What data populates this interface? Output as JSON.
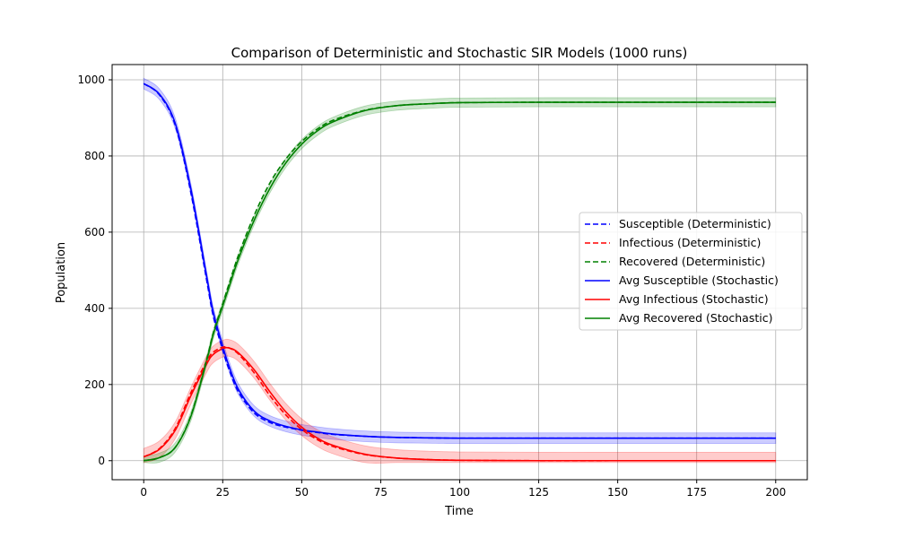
{
  "chart_data": {
    "type": "line",
    "title": "Comparison of Deterministic and Stochastic SIR Models (1000 runs)",
    "xlabel": "Time",
    "ylabel": "Population",
    "xlim": [
      -10,
      210
    ],
    "ylim": [
      -50,
      1040
    ],
    "xticks": [
      0,
      25,
      50,
      75,
      100,
      125,
      150,
      175,
      200
    ],
    "yticks": [
      0,
      200,
      400,
      600,
      800,
      1000
    ],
    "grid": true,
    "legend_position": "center-right",
    "x": [
      0,
      5,
      10,
      15,
      20,
      22,
      25,
      27,
      30,
      35,
      40,
      45,
      50,
      55,
      60,
      70,
      80,
      90,
      100,
      125,
      150,
      175,
      200
    ],
    "series": [
      {
        "name": "Susceptible (Deterministic)",
        "style": "dashed",
        "color": "#0000ff",
        "values": [
          990,
          960,
          880,
          700,
          470,
          380,
          290,
          240,
          180,
          125,
          100,
          88,
          80,
          74,
          69,
          64,
          61,
          60,
          59,
          59,
          59,
          59,
          59
        ]
      },
      {
        "name": "Infectious (Deterministic)",
        "style": "dashed",
        "color": "#ff0000",
        "values": [
          10,
          32,
          85,
          180,
          262,
          285,
          298,
          296,
          280,
          230,
          170,
          120,
          82,
          55,
          37,
          16,
          7,
          3,
          1,
          0,
          0,
          0,
          0
        ]
      },
      {
        "name": "Recovered (Deterministic)",
        "style": "dashed",
        "color": "#008000",
        "values": [
          0,
          8,
          35,
          120,
          268,
          335,
          412,
          464,
          540,
          645,
          730,
          792,
          838,
          871,
          894,
          920,
          932,
          937,
          940,
          941,
          941,
          941,
          941
        ]
      },
      {
        "name": "Avg Susceptible (Stochastic)",
        "style": "solid",
        "color": "#0000ff",
        "band": 14,
        "values": [
          990,
          962,
          885,
          710,
          480,
          390,
          300,
          248,
          187,
          130,
          104,
          90,
          81,
          75,
          70,
          64,
          61,
          60,
          59,
          59,
          59,
          59,
          59
        ]
      },
      {
        "name": "Avg Infectious (Stochastic)",
        "style": "solid",
        "color": "#ff0000",
        "band": 22,
        "values": [
          10,
          30,
          80,
          172,
          255,
          279,
          294,
          296,
          283,
          238,
          180,
          128,
          88,
          59,
          40,
          17,
          7,
          3,
          1,
          0,
          0,
          0,
          0
        ]
      },
      {
        "name": "Avg Recovered (Stochastic)",
        "style": "solid",
        "color": "#008000",
        "band": 12,
        "values": [
          0,
          8,
          35,
          118,
          265,
          331,
          406,
          456,
          530,
          632,
          716,
          782,
          831,
          866,
          890,
          919,
          932,
          937,
          940,
          941,
          941,
          941,
          941
        ]
      }
    ]
  }
}
